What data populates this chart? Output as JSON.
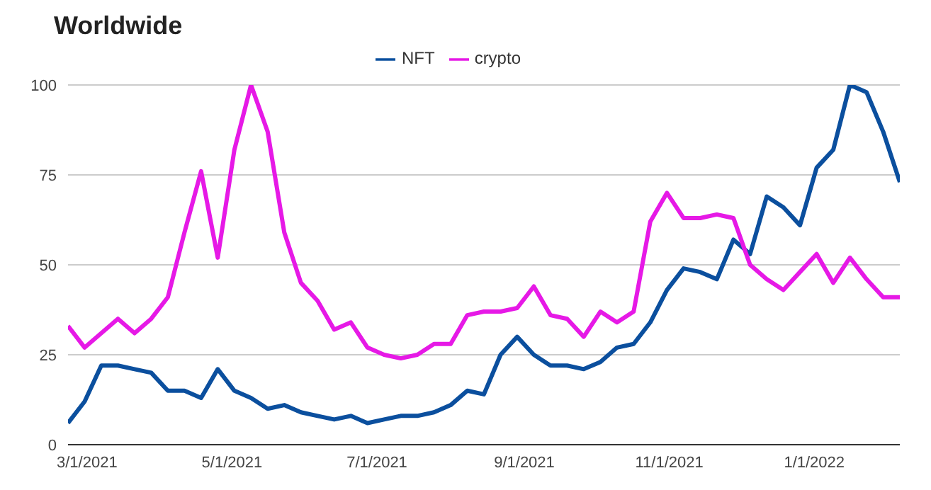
{
  "chart_data": {
    "type": "line",
    "title": "Worldwide",
    "x": [
      "2021-02-21",
      "2021-02-28",
      "2021-03-07",
      "2021-03-14",
      "2021-03-21",
      "2021-03-28",
      "2021-04-04",
      "2021-04-11",
      "2021-04-18",
      "2021-04-25",
      "2021-05-02",
      "2021-05-09",
      "2021-05-16",
      "2021-05-23",
      "2021-05-30",
      "2021-06-06",
      "2021-06-13",
      "2021-06-20",
      "2021-06-27",
      "2021-07-04",
      "2021-07-11",
      "2021-07-18",
      "2021-07-25",
      "2021-08-01",
      "2021-08-08",
      "2021-08-15",
      "2021-08-22",
      "2021-08-29",
      "2021-09-05",
      "2021-09-12",
      "2021-09-19",
      "2021-09-26",
      "2021-10-03",
      "2021-10-10",
      "2021-10-17",
      "2021-10-24",
      "2021-10-31",
      "2021-11-07",
      "2021-11-14",
      "2021-11-21",
      "2021-11-28",
      "2021-12-05",
      "2021-12-12",
      "2021-12-19",
      "2021-12-26",
      "2022-01-02",
      "2022-01-09",
      "2022-01-16",
      "2022-01-23",
      "2022-01-30",
      "2022-02-06"
    ],
    "series": [
      {
        "name": "NFT",
        "color": "#0b4f9e",
        "values": [
          6,
          12,
          22,
          22,
          21,
          20,
          15,
          15,
          13,
          21,
          15,
          13,
          10,
          11,
          9,
          8,
          7,
          8,
          6,
          7,
          8,
          8,
          9,
          11,
          15,
          14,
          25,
          30,
          25,
          22,
          22,
          21,
          23,
          27,
          28,
          34,
          43,
          49,
          48,
          46,
          57,
          53,
          69,
          66,
          61,
          77,
          82,
          100,
          98,
          87,
          73
        ]
      },
      {
        "name": "crypto",
        "color": "#e619e6",
        "values": [
          33,
          27,
          31,
          35,
          31,
          35,
          41,
          59,
          76,
          52,
          82,
          100,
          87,
          59,
          45,
          40,
          32,
          34,
          27,
          25,
          24,
          25,
          28,
          28,
          36,
          37,
          37,
          38,
          44,
          36,
          35,
          30,
          37,
          34,
          37,
          62,
          70,
          63,
          63,
          64,
          63,
          50,
          46,
          43,
          48,
          53,
          45,
          52,
          46,
          41,
          41
        ]
      }
    ],
    "xlim": [
      "2021-02-21",
      "2022-02-06"
    ],
    "xticks": [
      {
        "value": "2021-03-01",
        "label": "3/1/2021"
      },
      {
        "value": "2021-05-01",
        "label": "5/1/2021"
      },
      {
        "value": "2021-07-01",
        "label": "7/1/2021"
      },
      {
        "value": "2021-09-01",
        "label": "9/1/2021"
      },
      {
        "value": "2021-11-01",
        "label": "11/1/2021"
      },
      {
        "value": "2022-01-01",
        "label": "1/1/2022"
      }
    ],
    "ylim": [
      0,
      100
    ],
    "yticks": [
      0,
      25,
      50,
      75,
      100
    ],
    "grid": "y",
    "legend": "top",
    "marker": "none",
    "line_style": "solid"
  }
}
